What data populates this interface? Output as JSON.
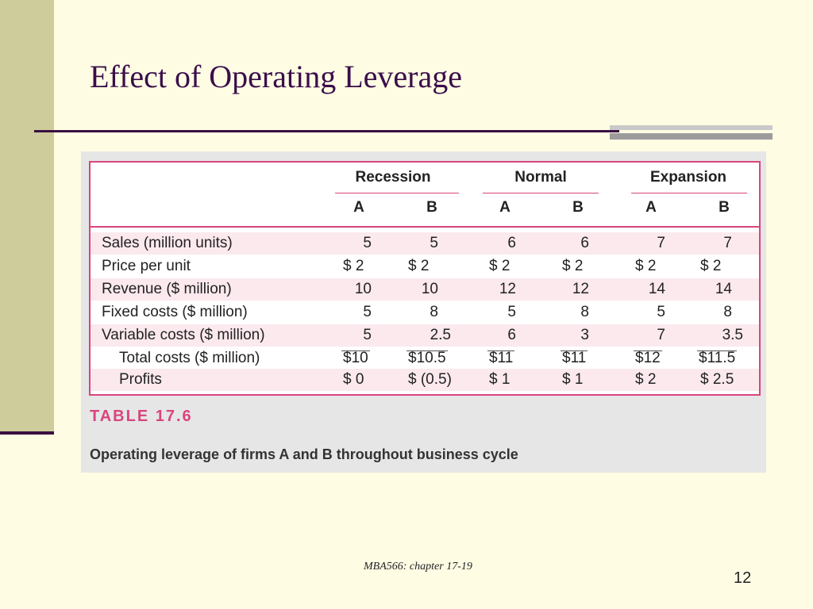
{
  "slide": {
    "title": "Effect of Operating Leverage",
    "footer": "MBA566: chapter 17-19",
    "page_number": "12"
  },
  "table": {
    "periods": [
      "Recession",
      "Normal",
      "Expansion"
    ],
    "firms": [
      "A",
      "B",
      "A",
      "B",
      "A",
      "B"
    ],
    "rows": [
      {
        "label": "Sales (million units)",
        "cells": [
          "5",
          "5",
          "6",
          "6",
          "7",
          "7"
        ]
      },
      {
        "label": "Price per unit",
        "cells": [
          "$  2",
          "$  2",
          "$ 2",
          "$ 2",
          "$  2",
          "$   2"
        ]
      },
      {
        "label": "Revenue ($ million)",
        "cells": [
          "10",
          "10",
          "12",
          "12",
          "14",
          "14"
        ]
      },
      {
        "label": "Fixed costs ($ million)",
        "cells": [
          "5",
          "8",
          "5",
          "8",
          "5",
          "8"
        ]
      },
      {
        "label": "Variable costs ($ million)",
        "cells": [
          "5",
          "2.5",
          "6",
          "3",
          "7",
          "3.5"
        ]
      },
      {
        "label": "Total costs ($ million)",
        "cells": [
          "$10",
          "$10.5",
          "$11",
          "$11",
          "$12",
          "$11.5"
        ]
      },
      {
        "label": "Profits",
        "cells": [
          "$  0",
          "$ (0.5)",
          "$  1",
          "$  1",
          "$  2",
          "$  2.5"
        ]
      }
    ],
    "caption_number": "TABLE 17.6",
    "caption_text": "Operating leverage of firms A and B throughout business cycle"
  }
}
